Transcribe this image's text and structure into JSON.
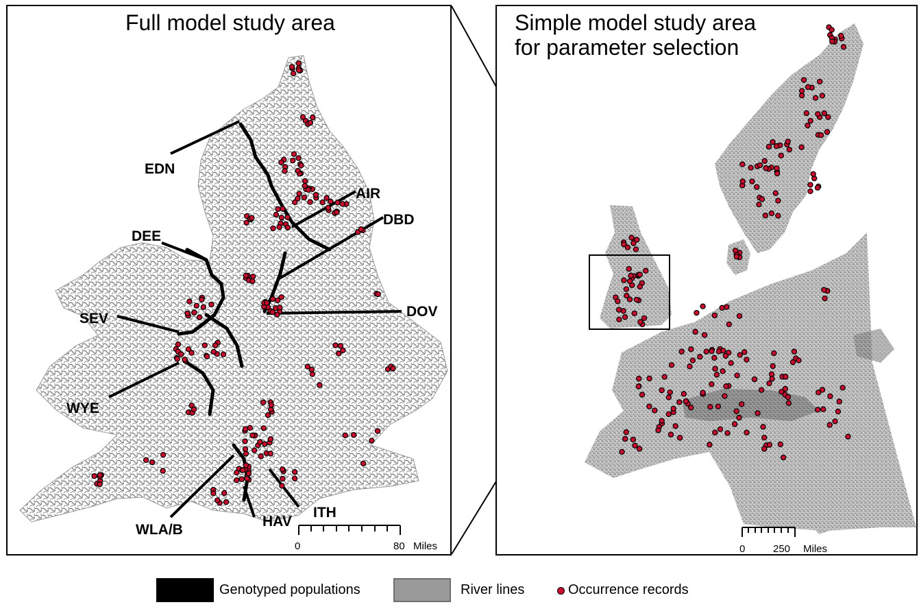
{
  "left_panel": {
    "title": "Full model study area",
    "sites": [
      "EDN",
      "AIR",
      "DBD",
      "DEE",
      "DOV",
      "SEV",
      "WYE",
      "WLA/B",
      "HAV",
      "ITH"
    ],
    "scale": {
      "start": "0",
      "end": "80",
      "unit": "Miles"
    }
  },
  "right_panel": {
    "title_line1": "Simple model study area",
    "title_line2": "for parameter selection",
    "scale": {
      "start": "0",
      "end": "250",
      "unit": "Miles"
    }
  },
  "legend": {
    "genotyped": "Genotyped populations",
    "rivers": "River lines",
    "occurrences": "Occurrence records"
  },
  "colors": {
    "occurrence_fill": "#c8102e",
    "river_gray": "#8c8c8c",
    "genotyped": "#000000"
  }
}
